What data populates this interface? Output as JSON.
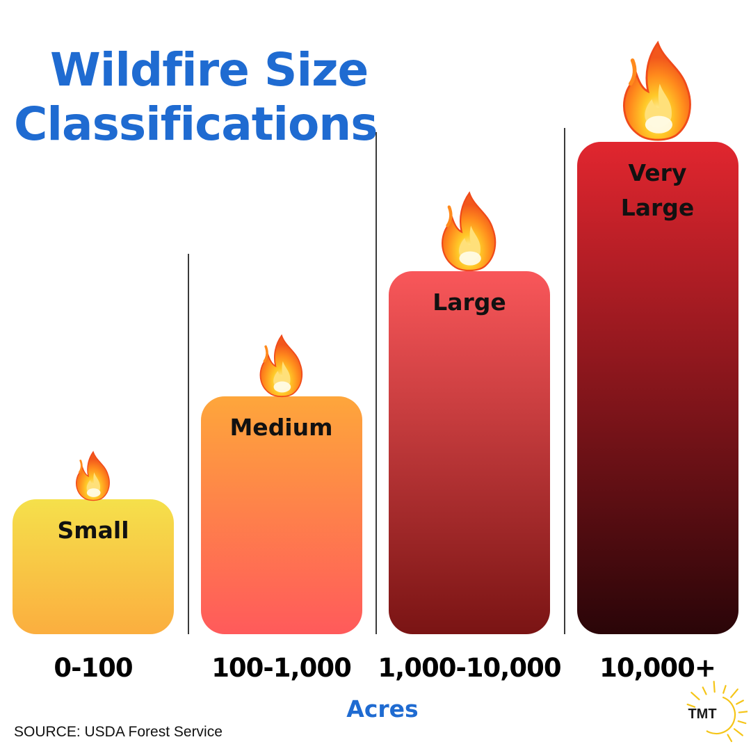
{
  "chart_data": {
    "type": "bar",
    "title": "Wildfire Size Classifications",
    "title_lines": [
      "Wildfire Size",
      "Classifications"
    ],
    "categories": [
      "0-100",
      "100-1,000",
      "1,000-10,000",
      "10,000+"
    ],
    "class_labels": [
      "Small",
      "Medium",
      "Large",
      "Very Large"
    ],
    "class_label_lines": [
      [
        "Small"
      ],
      [
        "Medium"
      ],
      [
        "Large"
      ],
      [
        "Very",
        "Large"
      ]
    ],
    "values": [
      1,
      2,
      3,
      4
    ],
    "xlabel": "Acres",
    "ylabel": "",
    "ylim": [
      0,
      4.4
    ],
    "grid": false,
    "legend": "none",
    "colors": [
      [
        "#f5e04b",
        "#fbae3f"
      ],
      [
        "#fea63b",
        "#ff5a5b"
      ],
      [
        "#f9575a",
        "#7a1414"
      ],
      [
        "#e1262f",
        "#2a0508"
      ]
    ]
  },
  "source": "SOURCE: USDA Forest Service",
  "logo": {
    "text": "TMT",
    "color": "#f5c518",
    "icon": "sun-icon"
  },
  "icons": {
    "flame": "fire-emoji-icon"
  }
}
